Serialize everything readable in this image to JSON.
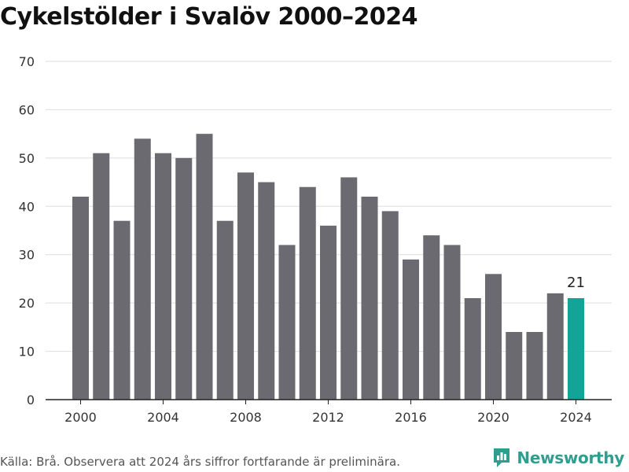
{
  "title": "Cykelstölder i Svalöv 2000–2024",
  "footer": "Källa: Brå. Observera att 2024 års siffror fortfarande är preliminära.",
  "brand": {
    "name": "Newsworthy",
    "icon": "newsworthy-logo-icon"
  },
  "colors": {
    "bar": "#6b6a70",
    "highlight": "#13a397",
    "grid": "#dddddd",
    "axis": "#222222",
    "brand": "#2e9e8f"
  },
  "chart_data": {
    "type": "bar",
    "categories": [
      "2000",
      "2001",
      "2002",
      "2003",
      "2004",
      "2005",
      "2006",
      "2007",
      "2008",
      "2009",
      "2010",
      "2011",
      "2012",
      "2013",
      "2014",
      "2015",
      "2016",
      "2017",
      "2018",
      "2019",
      "2020",
      "2021",
      "2022",
      "2023",
      "2024"
    ],
    "values": [
      42,
      51,
      37,
      54,
      51,
      50,
      55,
      37,
      47,
      45,
      32,
      44,
      36,
      46,
      42,
      39,
      29,
      34,
      32,
      21,
      26,
      14,
      14,
      22,
      21
    ],
    "x_tick_labels": [
      "2000",
      "2004",
      "2008",
      "2012",
      "2016",
      "2020",
      "2024"
    ],
    "y_ticks": [
      0,
      10,
      20,
      30,
      40,
      50,
      60,
      70
    ],
    "ylim": [
      0,
      70
    ],
    "highlight_category": "2024",
    "data_labels": [
      {
        "category": "2024",
        "text": "21"
      }
    ],
    "grid": true,
    "title": "Cykelstölder i Svalöv 2000–2024",
    "xlabel": "",
    "ylabel": ""
  }
}
